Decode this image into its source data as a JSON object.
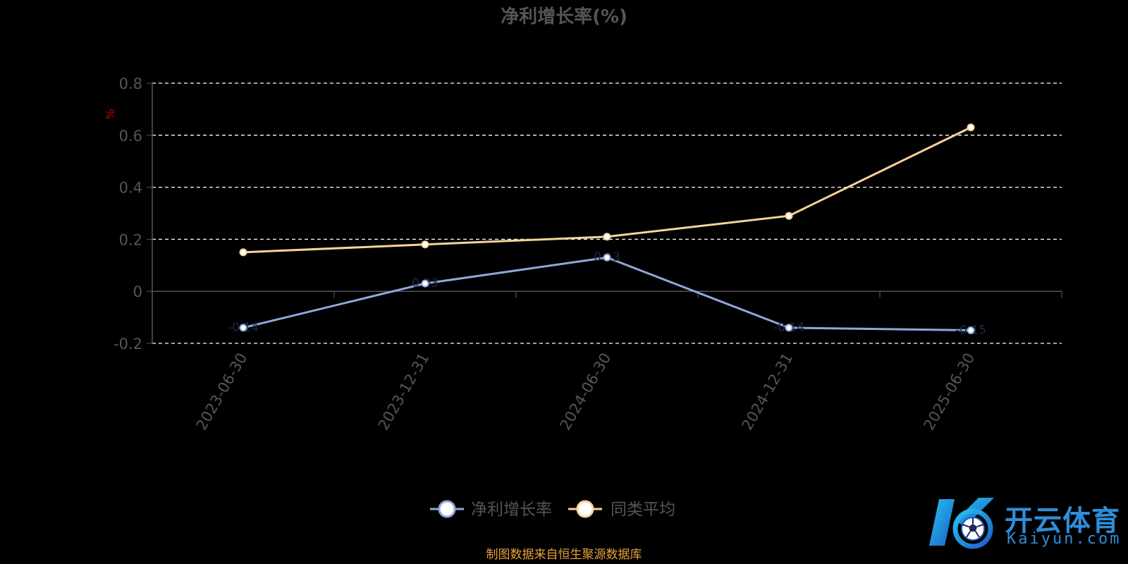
{
  "chart_data": {
    "type": "line",
    "title": "净利增长率(%)",
    "ylabel": "%",
    "xlabel": "",
    "categories": [
      "2023-06-30",
      "2023-12-31",
      "2024-06-30",
      "2024-12-31",
      "2025-06-30"
    ],
    "ylim": [
      -0.2,
      0.8
    ],
    "yticks": [
      -0.2,
      0,
      0.2,
      0.4,
      0.6,
      0.8
    ],
    "ytick_labels": [
      "-0.2",
      "0",
      "0.2",
      "0.4",
      "0.6",
      "0.8"
    ],
    "grid": true,
    "legend_position": "bottom",
    "series": [
      {
        "name": "净利增长率",
        "values": [
          -0.14,
          0.03,
          0.13,
          -0.14,
          -0.15
        ],
        "data_labels": [
          "-0.14",
          "0.03",
          "0.13",
          "-0.14",
          "-0.15"
        ],
        "color": "#8fa8d8"
      },
      {
        "name": "同类平均",
        "values": [
          0.15,
          0.18,
          0.21,
          0.29,
          0.63
        ],
        "color": "#f6d39a"
      }
    ],
    "colors": {
      "axis_text": "#555555",
      "grid": "#ffffff",
      "axis_line": "#555555",
      "ylabel": "#cc0000"
    }
  },
  "footer": {
    "source": "制图数据来自恒生聚源数据库",
    "source_color": "#e6a23c"
  },
  "logo": {
    "cn": "开云体育",
    "en": "Kaiyun.com",
    "icon_name": "kaiyun-soccer-logo-icon"
  }
}
